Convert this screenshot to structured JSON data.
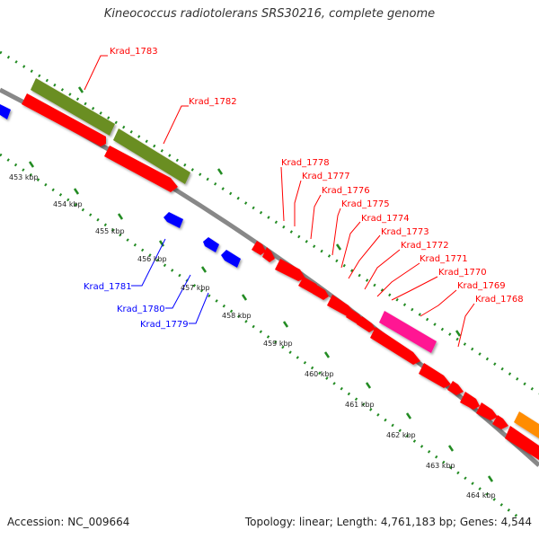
{
  "title": "Kineococcus radiotolerans SRS30216, complete genome",
  "accession": "Accession: NC_009664",
  "summary": "Topology: linear; Length: 4,761,183 bp; Genes: 4,544",
  "colors": {
    "backbone": "#888888",
    "ticks": "#228b22",
    "forward_cds": "#ff0000",
    "reverse_cds": "#0000ff",
    "gene": "#6b8e23",
    "rna": "#ff1493",
    "other": "#ff8c00"
  },
  "kbp_labels": [
    "453 kbp",
    "454 kbp",
    "455 kbp",
    "456 kbp",
    "457 kbp",
    "458 kbp",
    "459 kbp",
    "460 kbp",
    "461 kbp",
    "462 kbp",
    "463 kbp",
    "464 kbp"
  ],
  "labels_forward": [
    "Krad_1783",
    "Krad_1782",
    "Krad_1778",
    "Krad_1777",
    "Krad_1776",
    "Krad_1775",
    "Krad_1774",
    "Krad_1773",
    "Krad_1772",
    "Krad_1771",
    "Krad_1770",
    "Krad_1769",
    "Krad_1768"
  ],
  "labels_reverse": [
    "Krad_1781",
    "Krad_1780",
    "Krad_1779"
  ]
}
